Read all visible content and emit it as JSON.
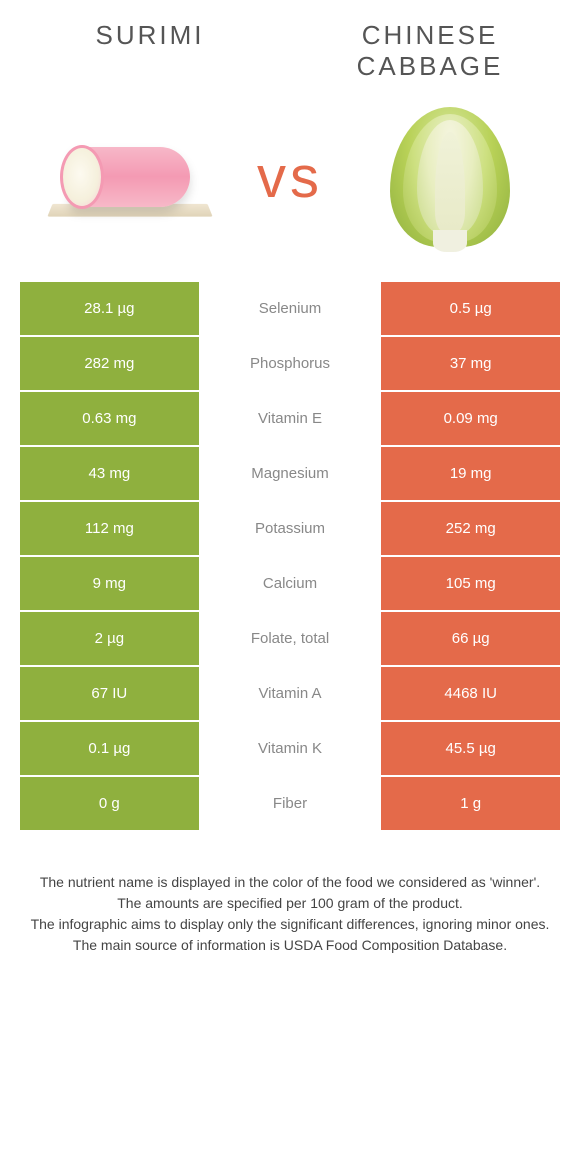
{
  "colors": {
    "left": "#8fb03e",
    "right": "#e46a4a",
    "bg": "#ffffff"
  },
  "header": {
    "left_title": "Surimi",
    "right_title": "Chinese cabbage",
    "vs": "vs"
  },
  "nutrients": [
    {
      "name": "Selenium",
      "left": "28.1 µg",
      "right": "0.5 µg",
      "winner": "left"
    },
    {
      "name": "Phosphorus",
      "left": "282 mg",
      "right": "37 mg",
      "winner": "left"
    },
    {
      "name": "Vitamin E",
      "left": "0.63 mg",
      "right": "0.09 mg",
      "winner": "left"
    },
    {
      "name": "Magnesium",
      "left": "43 mg",
      "right": "19 mg",
      "winner": "left"
    },
    {
      "name": "Potassium",
      "left": "112 mg",
      "right": "252 mg",
      "winner": "right"
    },
    {
      "name": "Calcium",
      "left": "9 mg",
      "right": "105 mg",
      "winner": "right"
    },
    {
      "name": "Folate, total",
      "left": "2 µg",
      "right": "66 µg",
      "winner": "right"
    },
    {
      "name": "Vitamin A",
      "left": "67 IU",
      "right": "4468 IU",
      "winner": "right"
    },
    {
      "name": "Vitamin K",
      "left": "0.1 µg",
      "right": "45.5 µg",
      "winner": "right"
    },
    {
      "name": "Fiber",
      "left": "0 g",
      "right": "1 g",
      "winner": "right"
    }
  ],
  "footer": {
    "line1": "The nutrient name is displayed in the color of the food we considered as 'winner'.",
    "line2": "The amounts are specified per 100 gram of the product.",
    "line3": "The infographic aims to display only the significant differences, ignoring minor ones.",
    "line4": "The main source of information is USDA Food Composition Database."
  }
}
